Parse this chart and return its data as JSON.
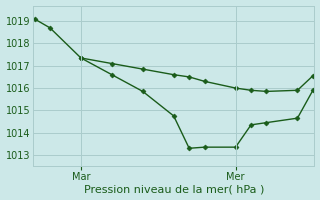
{
  "xlabel": "Pression niveau de la mer( hPa )",
  "background_color": "#cce8e8",
  "grid_color": "#aacccc",
  "line_color": "#1a5c1a",
  "ylim": [
    1012.5,
    1019.7
  ],
  "yticks": [
    1013,
    1014,
    1015,
    1016,
    1017,
    1018,
    1019
  ],
  "xlim": [
    -0.05,
    9.05
  ],
  "series1_x": [
    0,
    0.5,
    1.5,
    2.5,
    3.5,
    4.5,
    5.0,
    5.5,
    6.5,
    7.0,
    7.5,
    8.5,
    9.0
  ],
  "series1_y": [
    1019.1,
    1018.7,
    1017.35,
    1017.1,
    1016.85,
    1016.6,
    1016.5,
    1016.3,
    1016.0,
    1015.9,
    1015.85,
    1015.9,
    1016.55
  ],
  "series2_x": [
    1.5,
    2.5,
    3.5,
    4.5,
    5.0,
    5.5,
    6.5,
    7.0,
    7.5,
    8.5,
    9.0
  ],
  "series2_y": [
    1017.35,
    1016.6,
    1015.85,
    1014.75,
    1013.3,
    1013.35,
    1013.35,
    1014.35,
    1014.45,
    1014.65,
    1015.9
  ],
  "vlines_x": [
    1.5,
    6.5
  ],
  "xticklabels": [
    {
      "x": 1.5,
      "label": "Mar"
    },
    {
      "x": 6.5,
      "label": "Mer"
    }
  ],
  "marker": "D",
  "marker_size": 2.5,
  "line_width": 1.0,
  "xlabel_fontsize": 8,
  "tick_fontsize": 7
}
